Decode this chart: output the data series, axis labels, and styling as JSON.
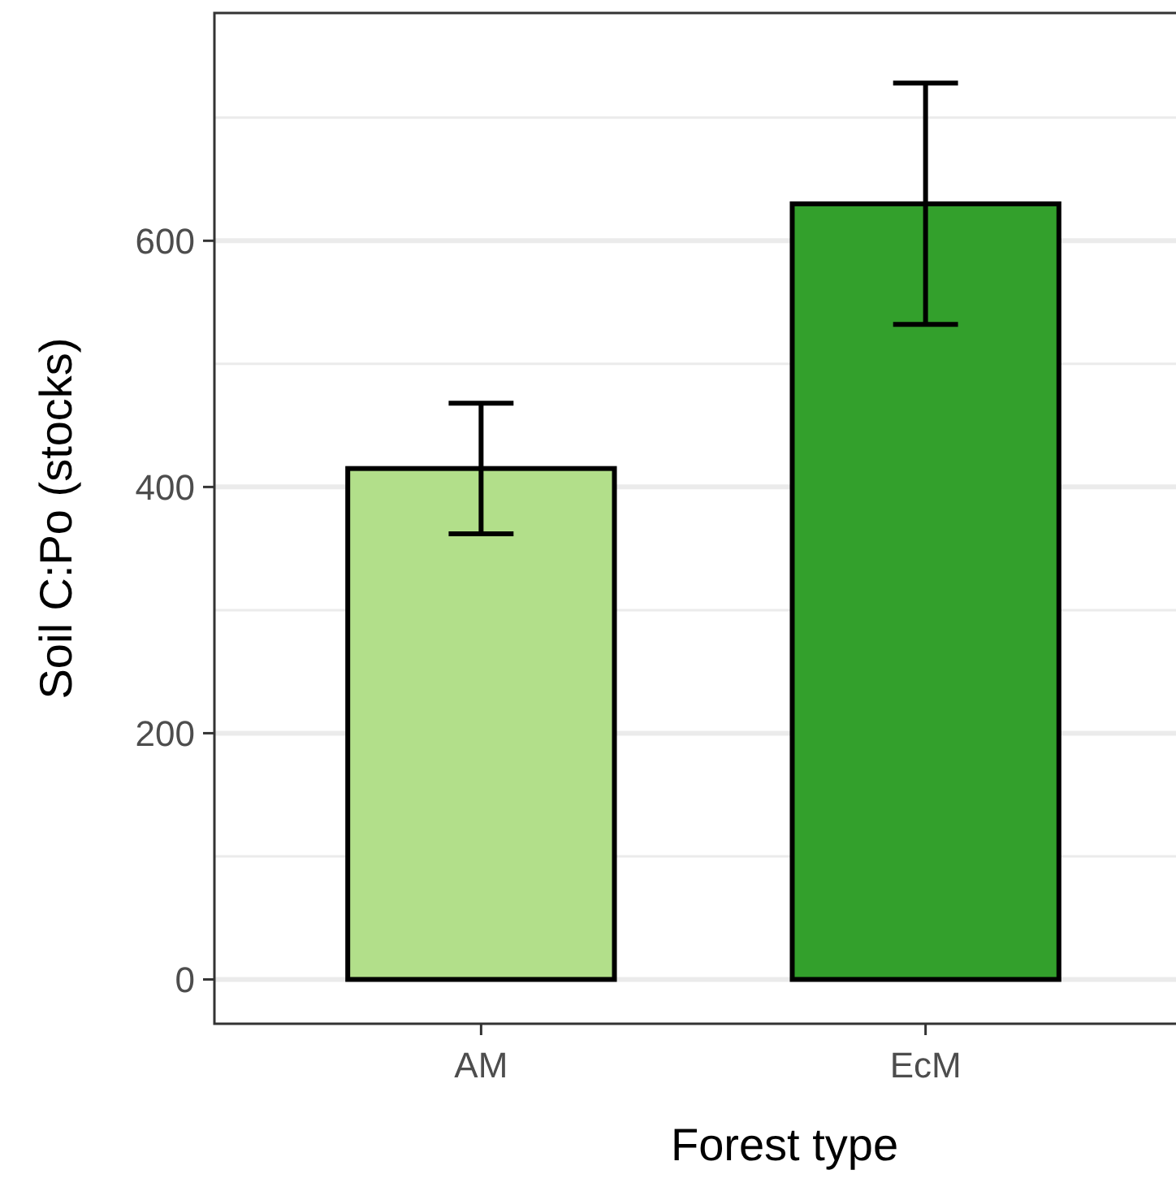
{
  "chart_data": {
    "type": "bar",
    "xlabel": "Forest type",
    "ylabel": "Soil C:Po (stocks)",
    "categories": [
      "AM",
      "EcM"
    ],
    "values": [
      415,
      630
    ],
    "colors": [
      "#b2df8a",
      "#33a02c"
    ],
    "errors": [
      53,
      98
    ],
    "ylim": [
      -36,
      785
    ],
    "yticks": [
      0,
      {
        "value": 100,
        "label": null
      },
      200,
      {
        "value": 300,
        "label": null
      },
      400,
      {
        "value": 500,
        "label": null
      },
      600,
      {
        "value": 700,
        "label": null
      }
    ],
    "grid": "y"
  }
}
